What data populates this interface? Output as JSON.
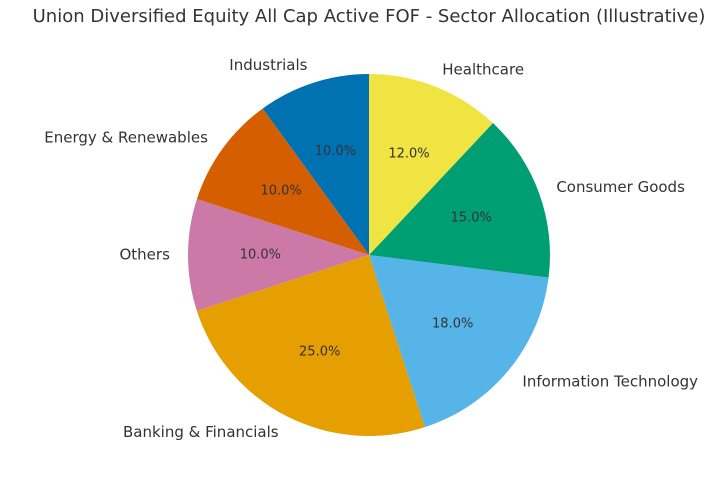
{
  "chart_data": {
    "type": "pie",
    "title": "Union Diversified Equity All Cap Active FOF - Sector Allocation (Illustrative)",
    "start_angle_deg": 90,
    "direction": "counterclockwise",
    "slices": [
      {
        "label": "Industrials",
        "value": 10.0,
        "display": "10.0%",
        "color": "#0072B2"
      },
      {
        "label": "Energy & Renewables",
        "value": 10.0,
        "display": "10.0%",
        "color": "#D55E00"
      },
      {
        "label": "Others",
        "value": 10.0,
        "display": "10.0%",
        "color": "#CC79A7"
      },
      {
        "label": "Banking & Financials",
        "value": 25.0,
        "display": "25.0%",
        "color": "#E69F00"
      },
      {
        "label": "Information Technology",
        "value": 18.0,
        "display": "18.0%",
        "color": "#56B4E9"
      },
      {
        "label": "Consumer Goods",
        "value": 15.0,
        "display": "15.0%",
        "color": "#009E73"
      },
      {
        "label": "Healthcare",
        "value": 12.0,
        "display": "12.0%",
        "color": "#F0E442"
      }
    ]
  }
}
